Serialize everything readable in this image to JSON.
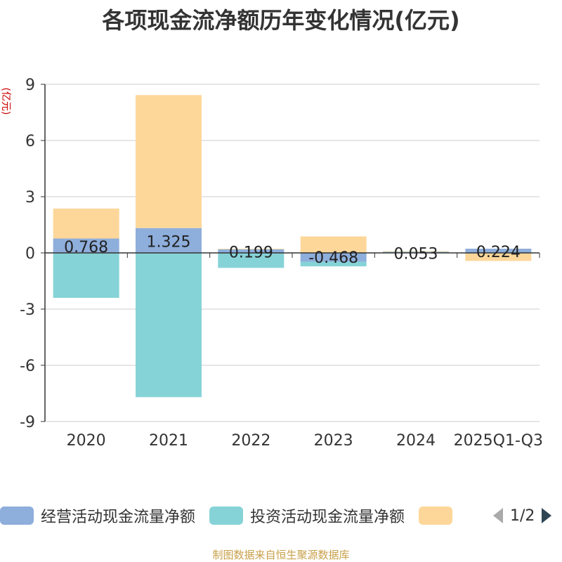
{
  "title": "各项现金流净额历年变化情况(亿元)",
  "source_note": "制图数据来自恒生聚源数据库",
  "pager": {
    "text": "1/2"
  },
  "chart_data": {
    "type": "bar",
    "stacked": true,
    "title": "各项现金流净额历年变化情况(亿元)",
    "ylabel": "(亿元)",
    "xlabel": "",
    "ylim": [
      -9,
      9
    ],
    "yticks": [
      9,
      6,
      3,
      0,
      -3,
      -6,
      -9
    ],
    "categories": [
      "2020",
      "2021",
      "2022",
      "2023",
      "2024",
      "2025Q1-Q3"
    ],
    "series": [
      {
        "name": "经营活动现金流量净额",
        "color": "#8eaedc",
        "values": [
          0.768,
          1.325,
          0.199,
          -0.468,
          0.053,
          0.224
        ]
      },
      {
        "name": "投资活动现金流量净额",
        "color": "#86d3d7",
        "values": [
          -2.4,
          -7.7,
          -0.8,
          -0.25,
          0.03,
          -0.03
        ]
      },
      {
        "name": "",
        "color": "#fdd79a",
        "values": [
          1.6,
          7.1,
          0.02,
          0.88,
          0.01,
          -0.4
        ]
      }
    ],
    "data_labels": [
      "0.768",
      "1.325",
      "0.199",
      "-0.468",
      "0.053",
      "0.224"
    ],
    "legend_position": "bottom"
  }
}
